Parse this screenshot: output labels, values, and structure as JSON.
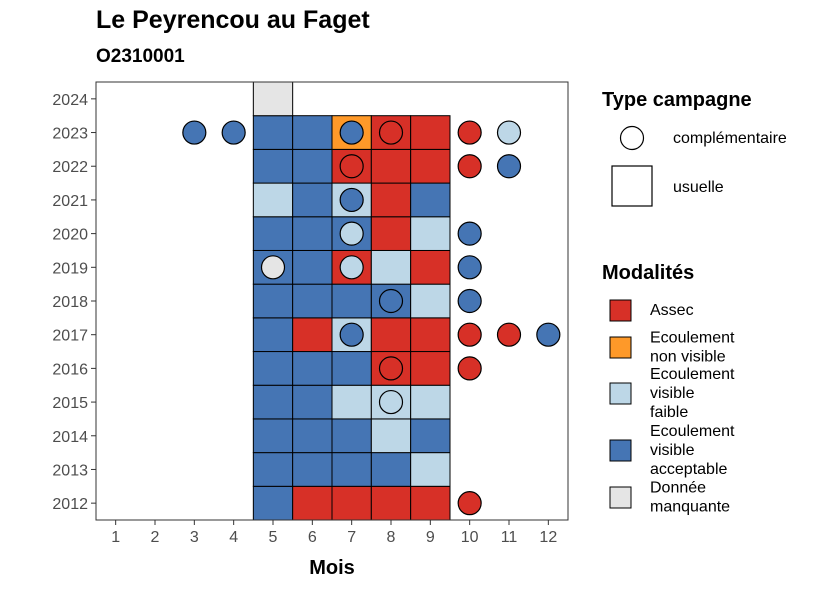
{
  "chart_data": {
    "type": "heatmap",
    "title": "Le Peyrencou au Faget",
    "subtitle": "O2310001",
    "xlabel": "Mois",
    "ylabel": "",
    "x_ticks": [
      1,
      2,
      3,
      4,
      5,
      6,
      7,
      8,
      9,
      10,
      11,
      12
    ],
    "y_ticks": [
      2012,
      2013,
      2014,
      2015,
      2016,
      2017,
      2018,
      2019,
      2020,
      2021,
      2022,
      2023,
      2024
    ],
    "xlim": [
      0.5,
      12.5
    ],
    "ylim": [
      2011.5,
      2024.5
    ],
    "grid": false,
    "legend_type_title": "Type campagne",
    "legend_type_entries": [
      {
        "key": "complementaire",
        "label": "complémentaire",
        "shape": "circle"
      },
      {
        "key": "usuelle",
        "label": "usuelle",
        "shape": "square"
      }
    ],
    "legend_mod_title": "Modalités",
    "legend_mod_entries": [
      {
        "key": "assec",
        "lines": [
          "Assec"
        ],
        "color": "#d73027"
      },
      {
        "key": "nonvisible",
        "lines": [
          "Ecoulement",
          "non visible"
        ],
        "color": "#fe9929"
      },
      {
        "key": "faible",
        "lines": [
          "Ecoulement",
          "visible",
          "faible"
        ],
        "color": "#bdd7e7"
      },
      {
        "key": "acceptable",
        "lines": [
          "Ecoulement",
          "visible",
          "acceptable"
        ],
        "color": "#4575b4"
      },
      {
        "key": "manquante",
        "lines": [
          "Donnée",
          "manquante"
        ],
        "color": "#e5e5e5"
      }
    ],
    "usuelle": [
      {
        "year": 2012,
        "month": 5,
        "m": "acceptable"
      },
      {
        "year": 2012,
        "month": 6,
        "m": "assec"
      },
      {
        "year": 2012,
        "month": 7,
        "m": "assec"
      },
      {
        "year": 2012,
        "month": 8,
        "m": "assec"
      },
      {
        "year": 2012,
        "month": 9,
        "m": "assec"
      },
      {
        "year": 2013,
        "month": 5,
        "m": "acceptable"
      },
      {
        "year": 2013,
        "month": 6,
        "m": "acceptable"
      },
      {
        "year": 2013,
        "month": 7,
        "m": "acceptable"
      },
      {
        "year": 2013,
        "month": 8,
        "m": "acceptable"
      },
      {
        "year": 2013,
        "month": 9,
        "m": "faible"
      },
      {
        "year": 2014,
        "month": 5,
        "m": "acceptable"
      },
      {
        "year": 2014,
        "month": 6,
        "m": "acceptable"
      },
      {
        "year": 2014,
        "month": 7,
        "m": "acceptable"
      },
      {
        "year": 2014,
        "month": 8,
        "m": "faible"
      },
      {
        "year": 2014,
        "month": 9,
        "m": "acceptable"
      },
      {
        "year": 2015,
        "month": 5,
        "m": "acceptable"
      },
      {
        "year": 2015,
        "month": 6,
        "m": "acceptable"
      },
      {
        "year": 2015,
        "month": 7,
        "m": "faible"
      },
      {
        "year": 2015,
        "month": 8,
        "m": "faible"
      },
      {
        "year": 2015,
        "month": 9,
        "m": "faible"
      },
      {
        "year": 2016,
        "month": 5,
        "m": "acceptable"
      },
      {
        "year": 2016,
        "month": 6,
        "m": "acceptable"
      },
      {
        "year": 2016,
        "month": 7,
        "m": "acceptable"
      },
      {
        "year": 2016,
        "month": 8,
        "m": "assec"
      },
      {
        "year": 2016,
        "month": 9,
        "m": "assec"
      },
      {
        "year": 2017,
        "month": 5,
        "m": "acceptable"
      },
      {
        "year": 2017,
        "month": 6,
        "m": "assec"
      },
      {
        "year": 2017,
        "month": 7,
        "m": "faible"
      },
      {
        "year": 2017,
        "month": 8,
        "m": "assec"
      },
      {
        "year": 2017,
        "month": 9,
        "m": "assec"
      },
      {
        "year": 2018,
        "month": 5,
        "m": "acceptable"
      },
      {
        "year": 2018,
        "month": 6,
        "m": "acceptable"
      },
      {
        "year": 2018,
        "month": 7,
        "m": "acceptable"
      },
      {
        "year": 2018,
        "month": 8,
        "m": "acceptable"
      },
      {
        "year": 2018,
        "month": 9,
        "m": "faible"
      },
      {
        "year": 2019,
        "month": 5,
        "m": "acceptable"
      },
      {
        "year": 2019,
        "month": 6,
        "m": "acceptable"
      },
      {
        "year": 2019,
        "month": 7,
        "m": "assec"
      },
      {
        "year": 2019,
        "month": 8,
        "m": "faible"
      },
      {
        "year": 2019,
        "month": 9,
        "m": "assec"
      },
      {
        "year": 2020,
        "month": 5,
        "m": "acceptable"
      },
      {
        "year": 2020,
        "month": 6,
        "m": "acceptable"
      },
      {
        "year": 2020,
        "month": 7,
        "m": "acceptable"
      },
      {
        "year": 2020,
        "month": 8,
        "m": "assec"
      },
      {
        "year": 2020,
        "month": 9,
        "m": "faible"
      },
      {
        "year": 2021,
        "month": 5,
        "m": "faible"
      },
      {
        "year": 2021,
        "month": 6,
        "m": "acceptable"
      },
      {
        "year": 2021,
        "month": 7,
        "m": "faible"
      },
      {
        "year": 2021,
        "month": 8,
        "m": "assec"
      },
      {
        "year": 2021,
        "month": 9,
        "m": "acceptable"
      },
      {
        "year": 2022,
        "month": 5,
        "m": "acceptable"
      },
      {
        "year": 2022,
        "month": 6,
        "m": "acceptable"
      },
      {
        "year": 2022,
        "month": 7,
        "m": "assec"
      },
      {
        "year": 2022,
        "month": 8,
        "m": "assec"
      },
      {
        "year": 2022,
        "month": 9,
        "m": "assec"
      },
      {
        "year": 2023,
        "month": 5,
        "m": "acceptable"
      },
      {
        "year": 2023,
        "month": 6,
        "m": "acceptable"
      },
      {
        "year": 2023,
        "month": 7,
        "m": "nonvisible"
      },
      {
        "year": 2023,
        "month": 8,
        "m": "assec"
      },
      {
        "year": 2023,
        "month": 9,
        "m": "assec"
      },
      {
        "year": 2024,
        "month": 5,
        "m": "manquante"
      }
    ],
    "complementaire": [
      {
        "year": 2012,
        "month": 10,
        "m": "assec"
      },
      {
        "year": 2015,
        "month": 8,
        "m": "faible"
      },
      {
        "year": 2016,
        "month": 8,
        "m": "assec"
      },
      {
        "year": 2016,
        "month": 10,
        "m": "assec"
      },
      {
        "year": 2017,
        "month": 7,
        "m": "acceptable"
      },
      {
        "year": 2017,
        "month": 10,
        "m": "assec"
      },
      {
        "year": 2017,
        "month": 11,
        "m": "assec"
      },
      {
        "year": 2017,
        "month": 12,
        "m": "acceptable"
      },
      {
        "year": 2018,
        "month": 8,
        "m": "acceptable"
      },
      {
        "year": 2018,
        "month": 10,
        "m": "acceptable"
      },
      {
        "year": 2019,
        "month": 5,
        "m": "manquante"
      },
      {
        "year": 2019,
        "month": 7,
        "m": "faible"
      },
      {
        "year": 2019,
        "month": 10,
        "m": "acceptable"
      },
      {
        "year": 2020,
        "month": 7,
        "m": "faible"
      },
      {
        "year": 2020,
        "month": 10,
        "m": "acceptable"
      },
      {
        "year": 2021,
        "month": 7,
        "m": "acceptable"
      },
      {
        "year": 2022,
        "month": 7,
        "m": "assec"
      },
      {
        "year": 2022,
        "month": 10,
        "m": "assec"
      },
      {
        "year": 2022,
        "month": 11,
        "m": "acceptable"
      },
      {
        "year": 2023,
        "month": 3,
        "m": "acceptable"
      },
      {
        "year": 2023,
        "month": 4,
        "m": "acceptable"
      },
      {
        "year": 2023,
        "month": 7,
        "m": "acceptable"
      },
      {
        "year": 2023,
        "month": 8,
        "m": "assec"
      },
      {
        "year": 2023,
        "month": 10,
        "m": "assec"
      },
      {
        "year": 2023,
        "month": 11,
        "m": "faible"
      }
    ]
  }
}
